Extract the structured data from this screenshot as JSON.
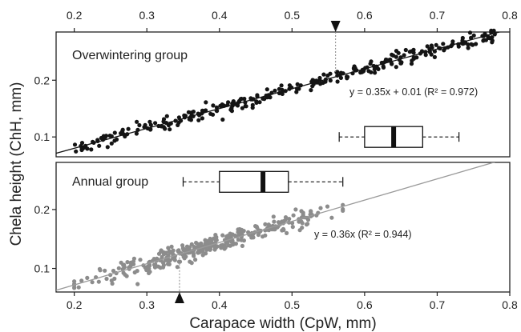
{
  "chart_data": [
    {
      "type": "scatter",
      "panel": "top",
      "panel_label": "Overwintering group",
      "equation": "y = 0.35x + 0.01 (R² = 0.972)",
      "regression": {
        "slope": 0.35,
        "intercept": 0.01
      },
      "xlim": [
        0.175,
        0.8
      ],
      "ylim": [
        0.065,
        0.285
      ],
      "yticks": [
        "0.1",
        "0.2"
      ],
      "x_marker": 0.56,
      "boxplot": {
        "whisker_low": 0.565,
        "q1": 0.6,
        "median": 0.64,
        "q3": 0.68,
        "whisker_high": 0.73,
        "y": 0.1
      },
      "point_color": "#141414",
      "line_color": "#141414",
      "n_points": 300,
      "x_range": [
        0.2,
        0.78
      ],
      "scatter_sd": 0.0065
    },
    {
      "type": "scatter",
      "panel": "bottom",
      "panel_label": "Annual group",
      "equation": "y = 0.36x (R² = 0.944)",
      "regression": {
        "slope": 0.36,
        "intercept": 0
      },
      "xlim": [
        0.175,
        0.8
      ],
      "ylim": [
        0.06,
        0.28
      ],
      "yticks": [
        "0.1",
        "0.2"
      ],
      "x_marker": 0.345,
      "boxplot": {
        "whisker_low": 0.35,
        "q1": 0.4,
        "median": 0.46,
        "q3": 0.495,
        "whisker_high": 0.57,
        "y": 0.247
      },
      "point_color": "#8c8c8c",
      "line_color": "#9a9a9a",
      "n_points": 330,
      "x_range": [
        0.2,
        0.57
      ],
      "scatter_sd": 0.008
    }
  ],
  "axes": {
    "xlabel": "Carapace width (CpW, mm)",
    "ylabel": "Chela height (ChH, mm)",
    "xticks": [
      "0.2",
      "0.3",
      "0.4",
      "0.5",
      "0.6",
      "0.7",
      "0.8"
    ]
  }
}
